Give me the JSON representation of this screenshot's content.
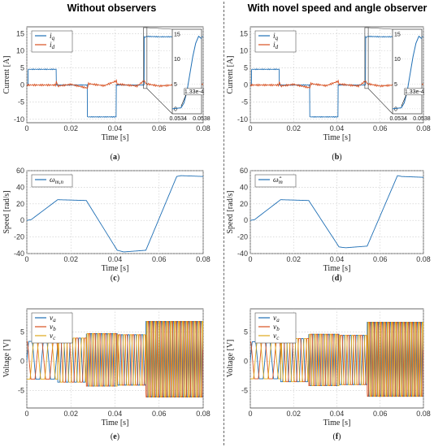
{
  "figure": {
    "column_titles": [
      "Without observers",
      "With novel speed and angle observer"
    ]
  },
  "colors": {
    "blue": "#1f6fb5",
    "orange": "#d9501f",
    "yellow": "#e0a81a",
    "grid": "#c8c8c8"
  },
  "chart_data": [
    {
      "id": "a",
      "type": "line",
      "caption": "(a)",
      "xlabel": "Time [s]",
      "ylabel": "Current [A]",
      "xlim": [
        0,
        0.08
      ],
      "ylim": [
        -11,
        17
      ],
      "xticks": [
        "0",
        "0.02",
        "0.04",
        "0.06",
        "0.08"
      ],
      "xtick_values": [
        0,
        0.02,
        0.04,
        0.06,
        0.08
      ],
      "yticks": [
        "-10",
        "-5",
        "0",
        "5",
        "10",
        "15"
      ],
      "ytick_values": [
        -10,
        -5,
        0,
        5,
        10,
        15
      ],
      "series": [
        {
          "name": "i_q",
          "legend_main": "i",
          "legend_sub": "q",
          "color": "#1f6fb5",
          "x": [
            0,
            0.0005,
            0.0006,
            0.0133,
            0.0134,
            0.0274,
            0.0275,
            0.0405,
            0.0406,
            0.0532,
            0.0533,
            0.0536,
            0.0545,
            0.06,
            0.07,
            0.08
          ],
          "y": [
            0,
            0,
            4.6,
            4.6,
            0,
            0,
            -9.3,
            -9.3,
            0,
            0,
            14.0,
            14.0,
            14.2,
            14.1,
            14.1,
            14.1
          ]
        },
        {
          "name": "i_d",
          "legend_main": "i",
          "legend_sub": "d",
          "color": "#d9501f",
          "x": [
            0,
            0.013,
            0.0134,
            0.014,
            0.02,
            0.0275,
            0.028,
            0.035,
            0.0406,
            0.041,
            0.05,
            0.0533,
            0.054,
            0.06,
            0.07,
            0.08
          ],
          "y": [
            0,
            0,
            0.8,
            -0.3,
            0.2,
            -0.9,
            0.4,
            -0.2,
            1.2,
            0.3,
            -0.3,
            1.3,
            0.4,
            -0.3,
            0.2,
            0.1
          ]
        }
      ],
      "inset": {
        "xlim": [
          0.0533,
          0.0538
        ],
        "ylim": [
          -1,
          16
        ],
        "xticks": [
          "0.0534",
          "0.0538"
        ],
        "xtick_values": [
          0.0534,
          0.0538
        ],
        "yticks": [
          "0",
          "5",
          "10",
          "15"
        ],
        "ytick_values": [
          0,
          5,
          10,
          15
        ],
        "annotation": "1.33e-4",
        "x": [
          0.0533,
          0.05345,
          0.0535,
          0.05355,
          0.0536,
          0.05365,
          0.0537,
          0.05375,
          0.0538
        ],
        "y": [
          0,
          0.2,
          1.2,
          3.5,
          7.0,
          10.5,
          13.2,
          14.6,
          14.1
        ]
      }
    },
    {
      "id": "b",
      "type": "line",
      "caption": "(b)",
      "xlabel": "Time [s]",
      "ylabel": "Current [A]",
      "xlim": [
        0,
        0.08
      ],
      "ylim": [
        -11,
        17
      ],
      "xticks": [
        "0",
        "0.02",
        "0.04",
        "0.06",
        "0.08"
      ],
      "xtick_values": [
        0,
        0.02,
        0.04,
        0.06,
        0.08
      ],
      "yticks": [
        "-10",
        "-5",
        "0",
        "5",
        "10",
        "15"
      ],
      "ytick_values": [
        -10,
        -5,
        0,
        5,
        10,
        15
      ],
      "series": [
        {
          "name": "i_q",
          "legend_main": "i",
          "legend_sub": "q",
          "color": "#1f6fb5",
          "x": [
            0,
            0.0005,
            0.0006,
            0.0133,
            0.0134,
            0.0274,
            0.0275,
            0.0405,
            0.0406,
            0.0532,
            0.0533,
            0.0536,
            0.0545,
            0.06,
            0.07,
            0.08
          ],
          "y": [
            0,
            0,
            4.6,
            4.6,
            0,
            0,
            -9.3,
            -9.3,
            0,
            0,
            14.0,
            14.0,
            14.2,
            14.1,
            14.1,
            14.1
          ]
        },
        {
          "name": "i_d",
          "legend_main": "i",
          "legend_sub": "d",
          "color": "#d9501f",
          "x": [
            0,
            0.013,
            0.0134,
            0.014,
            0.02,
            0.0275,
            0.028,
            0.035,
            0.0406,
            0.041,
            0.05,
            0.0533,
            0.054,
            0.06,
            0.07,
            0.08
          ],
          "y": [
            0,
            0,
            0.7,
            -0.3,
            0.2,
            -0.8,
            0.4,
            -0.2,
            1.1,
            0.3,
            -0.3,
            1.2,
            0.4,
            -0.3,
            0.2,
            0.1
          ]
        }
      ],
      "inset": {
        "xlim": [
          0.0533,
          0.0538
        ],
        "ylim": [
          -1,
          16
        ],
        "xticks": [
          "0.0534",
          "0.0538"
        ],
        "xtick_values": [
          0.0534,
          0.0538
        ],
        "yticks": [
          "0",
          "5",
          "10",
          "15"
        ],
        "ytick_values": [
          0,
          5,
          10,
          15
        ],
        "annotation": "1.33e-4",
        "x": [
          0.0533,
          0.05345,
          0.0535,
          0.05355,
          0.0536,
          0.05365,
          0.0537,
          0.05375,
          0.0538
        ],
        "y": [
          0,
          0.2,
          1.2,
          3.5,
          7.0,
          10.5,
          13.2,
          14.6,
          14.1
        ]
      }
    },
    {
      "id": "c",
      "type": "line",
      "caption": "(c)",
      "xlabel": "Time [s]",
      "ylabel": "Speed [rad/s]",
      "xlim": [
        0,
        0.08
      ],
      "ylim": [
        -40,
        60
      ],
      "xticks": [
        "0",
        "0.02",
        "0.04",
        "0.06",
        "0.08"
      ],
      "xtick_values": [
        0,
        0.02,
        0.04,
        0.06,
        0.08
      ],
      "yticks": [
        "-40",
        "-20",
        "0",
        "20",
        "40",
        "60"
      ],
      "ytick_values": [
        -40,
        -20,
        0,
        20,
        40,
        60
      ],
      "series": [
        {
          "name": "ω_m,n",
          "legend_main": "ω",
          "legend_sub": "m,n",
          "color": "#1f6fb5",
          "x": [
            0,
            0.002,
            0.014,
            0.027,
            0.041,
            0.044,
            0.054,
            0.068,
            0.07,
            0.08
          ],
          "y": [
            0,
            1,
            25,
            24,
            -36,
            -38,
            -36,
            53,
            54,
            53
          ]
        }
      ]
    },
    {
      "id": "d",
      "type": "line",
      "caption": "(d)",
      "xlabel": "Time [s]",
      "ylabel": "Speed [rad/s]",
      "xlim": [
        0,
        0.08
      ],
      "ylim": [
        -40,
        60
      ],
      "xticks": [
        "0",
        "0.02",
        "0.04",
        "0.06",
        "0.08"
      ],
      "xtick_values": [
        0,
        0.02,
        0.04,
        0.06,
        0.08
      ],
      "yticks": [
        "-40",
        "-20",
        "0",
        "20",
        "40",
        "60"
      ],
      "ytick_values": [
        -40,
        -20,
        0,
        20,
        40,
        60
      ],
      "series": [
        {
          "name": "ω̂_m",
          "legend_main": "ω̂",
          "legend_sub": "m",
          "color": "#1f6fb5",
          "x": [
            0,
            0.002,
            0.014,
            0.027,
            0.041,
            0.044,
            0.054,
            0.068,
            0.07,
            0.08
          ],
          "y": [
            0,
            1,
            25,
            24,
            -32,
            -33,
            -31,
            54,
            53,
            52
          ]
        }
      ]
    },
    {
      "id": "e",
      "type": "line",
      "caption": "(e)",
      "xlabel": "Time [s]",
      "ylabel": "Voltage [V]",
      "xlim": [
        0,
        0.08
      ],
      "ylim": [
        -8,
        9
      ],
      "xticks": [
        "0",
        "0.02",
        "0.04",
        "0.06",
        "0.08"
      ],
      "xtick_values": [
        0,
        0.02,
        0.04,
        0.06,
        0.08
      ],
      "yticks": [
        "-5",
        "0",
        "5"
      ],
      "ytick_values": [
        -5,
        0,
        5
      ],
      "series": [
        {
          "name": "v_a",
          "legend_main": "v",
          "legend_sub": "a",
          "color": "#1f6fb5"
        },
        {
          "name": "v_b",
          "legend_main": "v",
          "legend_sub": "b",
          "color": "#d9501f"
        },
        {
          "name": "v_c",
          "legend_main": "v",
          "legend_sub": "c",
          "color": "#e0a81a"
        }
      ]
    },
    {
      "id": "f",
      "type": "line",
      "caption": "(f)",
      "xlabel": "Time [s]",
      "ylabel": "Voltage [V]",
      "xlim": [
        0,
        0.08
      ],
      "ylim": [
        -8,
        9
      ],
      "xticks": [
        "0",
        "0.02",
        "0.04",
        "0.06",
        "0.08"
      ],
      "xtick_values": [
        0,
        0.02,
        0.04,
        0.06,
        0.08
      ],
      "yticks": [
        "-5",
        "0",
        "5"
      ],
      "ytick_values": [
        -5,
        0,
        5
      ],
      "series": [
        {
          "name": "v_a",
          "legend_main": "v",
          "legend_sub": "a",
          "color": "#1f6fb5"
        },
        {
          "name": "v_b",
          "legend_main": "v",
          "legend_sub": "b",
          "color": "#d9501f"
        },
        {
          "name": "v_c",
          "legend_main": "v",
          "legend_sub": "c",
          "color": "#e0a81a"
        }
      ]
    }
  ]
}
